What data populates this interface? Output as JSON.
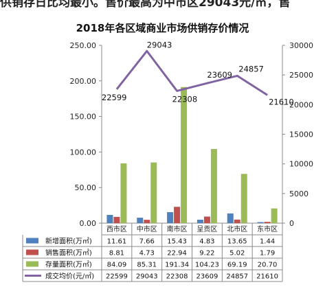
{
  "top_text": "供销存日比均最小。售价最高为中市区29043元/㎡，售",
  "chart_data": {
    "type": "bar",
    "title": "2018年各区域商业市场供销存价情况",
    "categories": [
      "西市区",
      "中市区",
      "南市区",
      "呈贡区",
      "北市区",
      "东市区"
    ],
    "y_left": {
      "min": 0,
      "max": 250,
      "step": 50,
      "ticks": [
        "0.00",
        "50.00",
        "100.00",
        "150.00",
        "200.00",
        "250.00"
      ]
    },
    "y_right": {
      "min": 0,
      "max": 30000,
      "step": 5000,
      "ticks": [
        "0",
        "5000",
        "10000",
        "15000",
        "20000",
        "25000",
        "30000"
      ]
    },
    "series": [
      {
        "name": "新增面积(万㎡)",
        "type": "bar",
        "axis": "left",
        "color": "#4F81BD",
        "values": [
          11.61,
          7.66,
          15.43,
          4.83,
          13.65,
          1.44
        ],
        "labels": [
          "11.61",
          "7.66",
          "15.43",
          "4.83",
          "13.65",
          "1.44"
        ]
      },
      {
        "name": "销售面积(万㎡)",
        "type": "bar",
        "axis": "left",
        "color": "#C0504D",
        "values": [
          8.81,
          4.73,
          22.94,
          9.22,
          5.02,
          1.79
        ],
        "labels": [
          "8.81",
          "4.73",
          "22.94",
          "9.22",
          "5.02",
          "1.79"
        ]
      },
      {
        "name": "存量面积(万㎡)",
        "type": "bar",
        "axis": "left",
        "color": "#9BBB59",
        "values": [
          84.09,
          85.31,
          191.34,
          104.23,
          69.19,
          20.7
        ],
        "labels": [
          "84.09",
          "85.31",
          "191.34",
          "104.23",
          "69.19",
          "20.70"
        ]
      },
      {
        "name": "成交均价(元/㎡)",
        "type": "line",
        "axis": "right",
        "color": "#8064A2",
        "values": [
          22599,
          29043,
          22308,
          23609,
          24857,
          21610
        ],
        "labels": [
          "22599",
          "29043",
          "22308",
          "23609",
          "24857",
          "21610"
        ]
      }
    ]
  }
}
